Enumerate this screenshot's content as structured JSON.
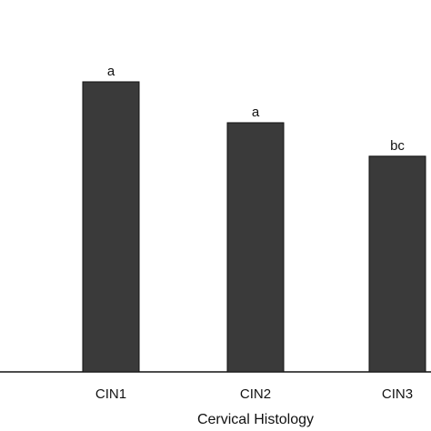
{
  "chart_data": {
    "type": "bar",
    "xlabel": "Cervical Histology",
    "categories": [
      "CIN1",
      "CIN2",
      "CIN3"
    ],
    "values": [
      78,
      67,
      58
    ],
    "annotations": [
      "a",
      "a",
      "bc"
    ],
    "ylim": [
      0,
      100
    ],
    "bar_color": "#3a3a3a",
    "grid": false,
    "legend": "none"
  }
}
